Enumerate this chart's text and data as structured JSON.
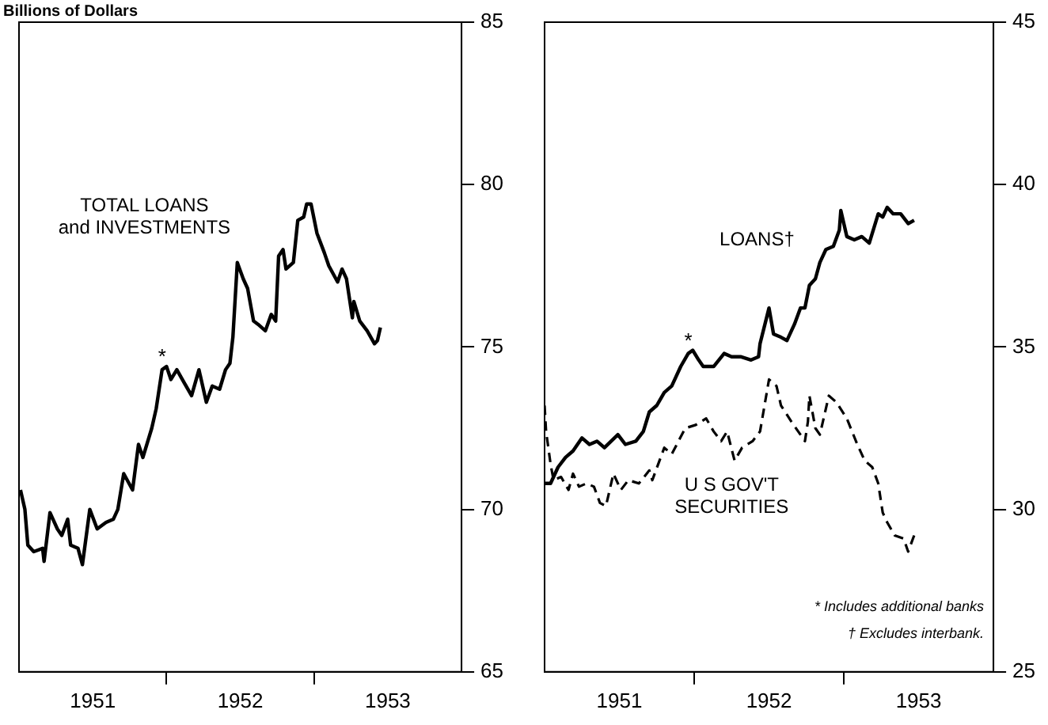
{
  "chart_data": [
    {
      "type": "line",
      "ylabel": "Billions of Dollars",
      "xlim": [
        1951,
        1954
      ],
      "ylim": [
        65,
        85
      ],
      "yticks": [
        65,
        70,
        75,
        80,
        85
      ],
      "xticks": [
        {
          "value": 1951.5,
          "label": "1951"
        },
        {
          "value": 1952,
          "label": null
        },
        {
          "value": 1952.5,
          "label": "1952"
        },
        {
          "value": 1953,
          "label": null
        },
        {
          "value": 1953.5,
          "label": "1953"
        }
      ],
      "grid": false,
      "legend": false,
      "tick_labels": "xy",
      "annotations": [
        {
          "text": "*",
          "x": 1951.97,
          "y": 74.3
        }
      ],
      "series": [
        {
          "name": "TOTAL LOANS\nand INVESTMENTS",
          "color": "#000000",
          "line_style": "solid",
          "x": [
            1951.01,
            1951.04,
            1951.06,
            1951.1,
            1951.16,
            1951.17,
            1951.21,
            1951.26,
            1951.29,
            1951.33,
            1951.35,
            1951.4,
            1951.43,
            1951.48,
            1951.53,
            1951.59,
            1951.64,
            1951.67,
            1951.71,
            1951.77,
            1951.81,
            1951.84,
            1951.9,
            1951.93,
            1951.97,
            1952.0,
            1952.03,
            1952.07,
            1952.12,
            1952.17,
            1952.22,
            1952.27,
            1952.31,
            1952.36,
            1952.4,
            1952.43,
            1952.45,
            1952.48,
            1952.52,
            1952.55,
            1952.59,
            1952.62,
            1952.67,
            1952.71,
            1952.74,
            1952.76,
            1952.79,
            1952.81,
            1952.86,
            1952.89,
            1952.93,
            1952.95,
            1952.98,
            1953.02,
            1953.07,
            1953.1,
            1953.16,
            1953.19,
            1953.22,
            1953.26,
            1953.27,
            1953.31,
            1953.36,
            1953.41,
            1953.43,
            1953.45
          ],
          "values": [
            70.6,
            70.0,
            68.9,
            68.7,
            68.8,
            68.4,
            69.9,
            69.4,
            69.2,
            69.7,
            68.9,
            68.8,
            68.3,
            70.0,
            69.4,
            69.6,
            69.7,
            70.0,
            71.1,
            70.6,
            72.0,
            71.6,
            72.5,
            73.1,
            74.3,
            74.4,
            74.0,
            74.3,
            73.9,
            73.5,
            74.3,
            73.3,
            73.8,
            73.7,
            74.3,
            74.5,
            75.3,
            77.6,
            77.1,
            76.8,
            75.8,
            75.7,
            75.5,
            76.0,
            75.8,
            77.8,
            78.0,
            77.4,
            77.6,
            78.9,
            79.0,
            79.4,
            79.4,
            78.5,
            77.9,
            77.5,
            77.0,
            77.4,
            77.1,
            75.9,
            76.4,
            75.8,
            75.5,
            75.1,
            75.2,
            75.6
          ]
        }
      ]
    },
    {
      "type": "line",
      "xlim": [
        1951,
        1954
      ],
      "ylim": [
        25,
        45
      ],
      "yticks": [
        25,
        30,
        35,
        40,
        45
      ],
      "xticks": [
        {
          "value": 1951.5,
          "label": "1951"
        },
        {
          "value": 1952,
          "label": null
        },
        {
          "value": 1952.5,
          "label": "1952"
        },
        {
          "value": 1953,
          "label": null
        },
        {
          "value": 1953.5,
          "label": "1953"
        }
      ],
      "grid": false,
      "legend": false,
      "annotations": [
        {
          "text": "*",
          "x": 1951.96,
          "y": 34.8
        },
        "* Includes additional banks",
        "† Excludes interbank."
      ],
      "series": [
        {
          "name": "LOANS†",
          "color": "#000000",
          "line_style": "solid",
          "x": [
            1951.0,
            1951.04,
            1951.09,
            1951.14,
            1951.19,
            1951.25,
            1951.3,
            1951.35,
            1951.4,
            1951.49,
            1951.54,
            1951.61,
            1951.66,
            1951.7,
            1951.75,
            1951.8,
            1951.85,
            1951.91,
            1951.96,
            1951.99,
            1952.03,
            1952.06,
            1952.13,
            1952.2,
            1952.25,
            1952.31,
            1952.38,
            1952.43,
            1952.44,
            1952.5,
            1952.53,
            1952.58,
            1952.62,
            1952.67,
            1952.71,
            1952.74,
            1952.77,
            1952.81,
            1952.84,
            1952.88,
            1952.93,
            1952.97,
            1952.98,
            1953.02,
            1953.07,
            1953.12,
            1953.17,
            1953.23,
            1953.26,
            1953.29,
            1953.33,
            1953.38,
            1953.43,
            1953.47
          ],
          "values": [
            30.8,
            30.8,
            31.3,
            31.6,
            31.8,
            32.2,
            32.0,
            32.1,
            31.9,
            32.3,
            32.0,
            32.1,
            32.4,
            33.0,
            33.2,
            33.6,
            33.8,
            34.4,
            34.8,
            34.9,
            34.6,
            34.4,
            34.4,
            34.8,
            34.7,
            34.7,
            34.6,
            34.7,
            35.1,
            36.2,
            35.4,
            35.3,
            35.2,
            35.7,
            36.2,
            36.2,
            36.9,
            37.1,
            37.6,
            38.0,
            38.1,
            38.6,
            39.2,
            38.4,
            38.3,
            38.4,
            38.2,
            39.1,
            39.0,
            39.3,
            39.1,
            39.1,
            38.8,
            38.9
          ]
        },
        {
          "name": "U S GOV'T\nSECURITIES",
          "color": "#000000",
          "line_style": "dashed",
          "x": [
            1951.0,
            1951.01,
            1951.04,
            1951.06,
            1951.11,
            1951.16,
            1951.19,
            1951.23,
            1951.28,
            1951.33,
            1951.37,
            1951.41,
            1951.46,
            1951.51,
            1951.56,
            1951.63,
            1951.7,
            1951.72,
            1951.8,
            1951.85,
            1951.94,
            1952.01,
            1952.08,
            1952.13,
            1952.18,
            1952.22,
            1952.27,
            1952.32,
            1952.39,
            1952.44,
            1952.5,
            1952.55,
            1952.58,
            1952.65,
            1952.71,
            1952.74,
            1952.76,
            1952.77,
            1952.81,
            1952.84,
            1952.9,
            1952.95,
            1953.02,
            1953.09,
            1953.14,
            1953.19,
            1953.23,
            1953.26,
            1953.29,
            1953.34,
            1953.4,
            1953.43,
            1953.47
          ],
          "values": [
            33.2,
            32.4,
            31.4,
            30.9,
            31.0,
            30.6,
            31.1,
            30.7,
            30.8,
            30.7,
            30.2,
            30.1,
            31.1,
            30.6,
            30.9,
            30.8,
            31.2,
            30.9,
            31.9,
            31.7,
            32.5,
            32.6,
            32.8,
            32.4,
            32.1,
            32.4,
            31.5,
            31.9,
            32.1,
            32.4,
            34.0,
            33.8,
            33.2,
            32.7,
            32.3,
            32.1,
            32.7,
            33.5,
            32.5,
            32.3,
            33.5,
            33.3,
            32.8,
            32.0,
            31.5,
            31.3,
            30.8,
            29.9,
            29.6,
            29.2,
            29.1,
            28.7,
            29.2
          ]
        }
      ]
    }
  ]
}
